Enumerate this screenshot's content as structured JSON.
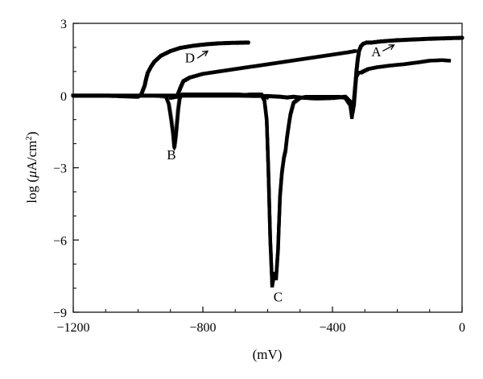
{
  "chart_data": {
    "type": "line",
    "xlabel": "(mV)",
    "ylabel": "log (μA/cm²)",
    "ylabel_parts": {
      "prefix": "log (",
      "mu": "μ",
      "unit": "A/cm",
      "sup": "2",
      "suffix": ")"
    },
    "xlim": [
      -1200,
      0
    ],
    "ylim": [
      -9,
      3
    ],
    "xticks": [
      -1200,
      -800,
      -400,
      0
    ],
    "xtick_labels": [
      "−1200",
      "−800",
      "−400",
      "0"
    ],
    "yticks": [
      3,
      0,
      -3,
      -6,
      -9
    ],
    "ytick_labels": [
      "3",
      "0",
      "−3",
      "−6",
      "−9"
    ],
    "grid": false,
    "series": [
      {
        "name": "A",
        "marker": "circle",
        "x": [
          -1200,
          -1000,
          -800,
          -700,
          -600,
          -560,
          -540,
          -520,
          -500,
          -450,
          -400,
          -360,
          -345,
          -338,
          -334,
          -330,
          -326,
          -322,
          -318,
          -312,
          -305,
          -295,
          -280,
          -250,
          -200,
          -150,
          -100,
          -50,
          0
        ],
        "y": [
          0.0,
          0.0,
          0.0,
          0.0,
          -0.02,
          -0.05,
          -0.08,
          -0.05,
          -0.08,
          -0.12,
          -0.1,
          -0.05,
          -0.25,
          -0.7,
          -0.4,
          0.3,
          1.0,
          1.5,
          1.85,
          2.05,
          2.15,
          2.2,
          2.2,
          2.25,
          2.3,
          2.33,
          2.36,
          2.38,
          2.4
        ]
      },
      {
        "name": "B",
        "marker": "triangle",
        "x": [
          -1200,
          -1000,
          -950,
          -915,
          -905,
          -898,
          -892,
          -888,
          -884,
          -880,
          -876,
          -872,
          -866,
          -860,
          -820,
          -750,
          -700,
          -620,
          -600
        ],
        "y": [
          0.0,
          0.0,
          0.0,
          -0.05,
          -0.4,
          -1.0,
          -1.6,
          -2.2,
          -1.8,
          -1.2,
          -0.6,
          -0.2,
          0.0,
          0.05,
          0.05,
          0.05,
          0.05,
          0.0,
          -0.1
        ]
      },
      {
        "name": "C",
        "marker": "square",
        "x": [
          -1200,
          -1000,
          -800,
          -700,
          -650,
          -620,
          -610,
          -603,
          -598,
          -592,
          -586,
          -580,
          -574,
          -568,
          -562,
          -556,
          -550,
          -545,
          -540,
          -530,
          -520,
          -500,
          -480,
          -460,
          -440,
          -420,
          -400,
          -380,
          -360,
          -345,
          -340,
          -334,
          -330,
          -326,
          -322,
          -318,
          -312,
          -305,
          -290,
          -260,
          -220,
          -180,
          -140,
          -100,
          -60,
          -40
        ],
        "y": [
          0.0,
          0.0,
          0.0,
          0.0,
          0.05,
          0.05,
          -0.2,
          -1.0,
          -3.0,
          -6.0,
          -7.9,
          -7.4,
          -7.6,
          -6.4,
          -4.2,
          -3.2,
          -2.6,
          -2.3,
          -1.7,
          -0.8,
          -0.3,
          -0.1,
          -0.05,
          -0.05,
          -0.05,
          -0.05,
          -0.05,
          -0.05,
          -0.1,
          -0.4,
          -0.9,
          -0.2,
          0.4,
          0.8,
          0.9,
          0.95,
          0.95,
          1.0,
          1.1,
          1.18,
          1.25,
          1.3,
          1.37,
          1.45,
          1.47,
          1.45
        ]
      },
      {
        "name": "D",
        "marker": "circle",
        "x": [
          -1200,
          -1100,
          -1000,
          -990,
          -980,
          -975,
          -970,
          -960,
          -950,
          -930,
          -900,
          -870,
          -830,
          -790,
          -750,
          -710,
          -670,
          -660
        ],
        "y": [
          0.0,
          0.0,
          -0.05,
          0.05,
          0.4,
          0.7,
          0.95,
          1.2,
          1.4,
          1.65,
          1.85,
          1.98,
          2.07,
          2.13,
          2.17,
          2.19,
          2.2,
          2.2
        ]
      },
      {
        "name": "",
        "marker": "square",
        "x": [
          -900,
          -880,
          -870,
          -860,
          -840,
          -800,
          -750,
          -700,
          -650,
          -600,
          -550,
          -500,
          -450,
          -400,
          -350,
          -330
        ],
        "y": [
          -0.1,
          -0.05,
          0.3,
          0.6,
          0.75,
          0.9,
          1.0,
          1.1,
          1.2,
          1.3,
          1.4,
          1.5,
          1.6,
          1.7,
          1.8,
          1.85
        ]
      }
    ],
    "annotations": [
      {
        "text": "A",
        "x": -265,
        "y": 1.63
      },
      {
        "text": "B",
        "x": -897,
        "y": -2.65
      },
      {
        "text": "C",
        "x": -568,
        "y": -8.55
      },
      {
        "text": "D",
        "x": -840,
        "y": 1.38
      }
    ],
    "arrows": [
      {
        "label": "A",
        "from": [
          -245,
          1.85
        ],
        "to": [
          -210,
          2.1
        ]
      },
      {
        "label": "D",
        "from": [
          -817,
          1.55
        ],
        "to": [
          -785,
          1.85
        ]
      }
    ]
  }
}
